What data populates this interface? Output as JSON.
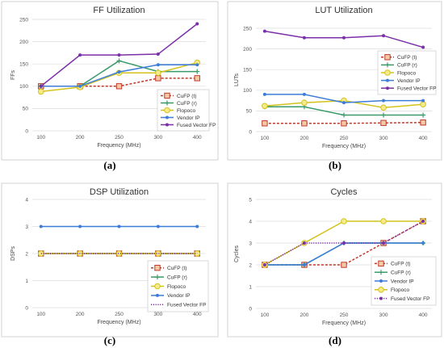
{
  "chart_data": [
    {
      "type": "line",
      "title": "FF Utilization",
      "xlabel": "Frequency (MHz)",
      "ylabel": "FFs",
      "categories": [
        "100",
        "200",
        "250",
        "300",
        "400"
      ],
      "ylim": [
        0,
        250
      ],
      "yticks": [
        0,
        50,
        100,
        150,
        200,
        250
      ],
      "grid": true,
      "legend_position": "bottom-right",
      "caption": "(a)",
      "series": [
        {
          "name": "CuFP (t)",
          "values": [
            100,
            100,
            100,
            118,
            118
          ],
          "color": "#c0392b",
          "dash": "dashed",
          "marker": "square"
        },
        {
          "name": "CuFP (r)",
          "values": [
            100,
            100,
            157,
            133,
            133
          ],
          "color": "#3a9a6a",
          "dash": "solid",
          "marker": "plus"
        },
        {
          "name": "Flopoco",
          "values": [
            88,
            98,
            130,
            130,
            153
          ],
          "color": "#d4c21a",
          "dash": "solid",
          "marker": "circle"
        },
        {
          "name": "Vendor IP",
          "values": [
            100,
            100,
            132,
            148,
            148
          ],
          "color": "#3b7dd8",
          "dash": "solid",
          "marker": "dot"
        },
        {
          "name": "Fused Vector FP",
          "values": [
            100,
            170,
            170,
            172,
            240
          ],
          "color": "#7b2fa8",
          "dash": "solid",
          "marker": "dot"
        }
      ]
    },
    {
      "type": "line",
      "title": "LUT Utilization",
      "xlabel": "Frequency (MHz)",
      "ylabel": "LUTs",
      "categories": [
        "100",
        "200",
        "250",
        "300",
        "400"
      ],
      "ylim": [
        0,
        250
      ],
      "yticks": [
        0,
        50,
        100,
        150,
        200,
        250
      ],
      "grid": true,
      "legend_position": "middle-right",
      "caption": "(b)",
      "series": [
        {
          "name": "CuFP (t)",
          "values": [
            20,
            20,
            20,
            21,
            22
          ],
          "color": "#c0392b",
          "dash": "dashed",
          "marker": "square"
        },
        {
          "name": "CuFP (r)",
          "values": [
            60,
            60,
            40,
            40,
            40
          ],
          "color": "#3a9a6a",
          "dash": "solid",
          "marker": "plus"
        },
        {
          "name": "Flopoco",
          "values": [
            62,
            70,
            75,
            58,
            66
          ],
          "color": "#d4c21a",
          "dash": "solid",
          "marker": "circle"
        },
        {
          "name": "Vendor IP",
          "values": [
            90,
            90,
            70,
            75,
            75
          ],
          "color": "#3b7dd8",
          "dash": "solid",
          "marker": "dot"
        },
        {
          "name": "Fused Vector FP",
          "values": [
            243,
            227,
            227,
            232,
            204
          ],
          "color": "#7b2fa8",
          "dash": "solid",
          "marker": "dot"
        }
      ]
    },
    {
      "type": "line",
      "title": "DSP Utilization",
      "xlabel": "Frequency (MHz)",
      "ylabel": "DSPs",
      "categories": [
        "100",
        "200",
        "250",
        "300",
        "400"
      ],
      "ylim": [
        0,
        4
      ],
      "yticks": [
        0,
        1,
        2,
        3,
        4
      ],
      "grid": true,
      "legend_position": "bottom-right",
      "caption": "(c)",
      "series": [
        {
          "name": "CuFP (t)",
          "values": [
            2,
            2,
            2,
            2,
            2
          ],
          "color": "#c0392b",
          "dash": "dashed",
          "marker": "square"
        },
        {
          "name": "CuFP (r)",
          "values": [
            2,
            2,
            2,
            2,
            2
          ],
          "color": "#3a9a6a",
          "dash": "solid",
          "marker": "plus"
        },
        {
          "name": "Flopoco",
          "values": [
            2,
            2,
            2,
            2,
            2
          ],
          "color": "#d4c21a",
          "dash": "solid",
          "marker": "circle"
        },
        {
          "name": "Vendor IP",
          "values": [
            3,
            3,
            3,
            3,
            3
          ],
          "color": "#3b7dd8",
          "dash": "solid",
          "marker": "dot"
        },
        {
          "name": "Fused Vector FP",
          "values": [
            2,
            2,
            2,
            2,
            2
          ],
          "color": "#7b2fa8",
          "dash": "dotted",
          "marker": "none"
        }
      ]
    },
    {
      "type": "line",
      "title": "Cycles",
      "xlabel": "Frequency (MHz)",
      "ylabel": "Cycles",
      "categories": [
        "100",
        "200",
        "250",
        "300",
        "400"
      ],
      "ylim": [
        0,
        5
      ],
      "yticks": [
        0,
        1,
        2,
        3,
        4,
        5
      ],
      "grid": true,
      "legend_position": "bottom-right",
      "caption": "(d)",
      "series": [
        {
          "name": "CuFP (t)",
          "values": [
            2,
            2,
            2,
            3,
            4
          ],
          "color": "#c0392b",
          "dash": "dashed",
          "marker": "square"
        },
        {
          "name": "CuFP (r)",
          "values": [
            2,
            2,
            3,
            3,
            3
          ],
          "color": "#3a9a6a",
          "dash": "solid",
          "marker": "plus"
        },
        {
          "name": "Vendor IP",
          "values": [
            2,
            2,
            3,
            3,
            3
          ],
          "color": "#3b7dd8",
          "dash": "solid",
          "marker": "dot"
        },
        {
          "name": "Flopoco",
          "values": [
            2,
            3,
            4,
            4,
            4
          ],
          "color": "#d4c21a",
          "dash": "solid",
          "marker": "circle"
        },
        {
          "name": "Fused Vector FP",
          "values": [
            2,
            3,
            3,
            3,
            4
          ],
          "color": "#7b2fa8",
          "dash": "dotted",
          "marker": "dot"
        }
      ]
    }
  ]
}
